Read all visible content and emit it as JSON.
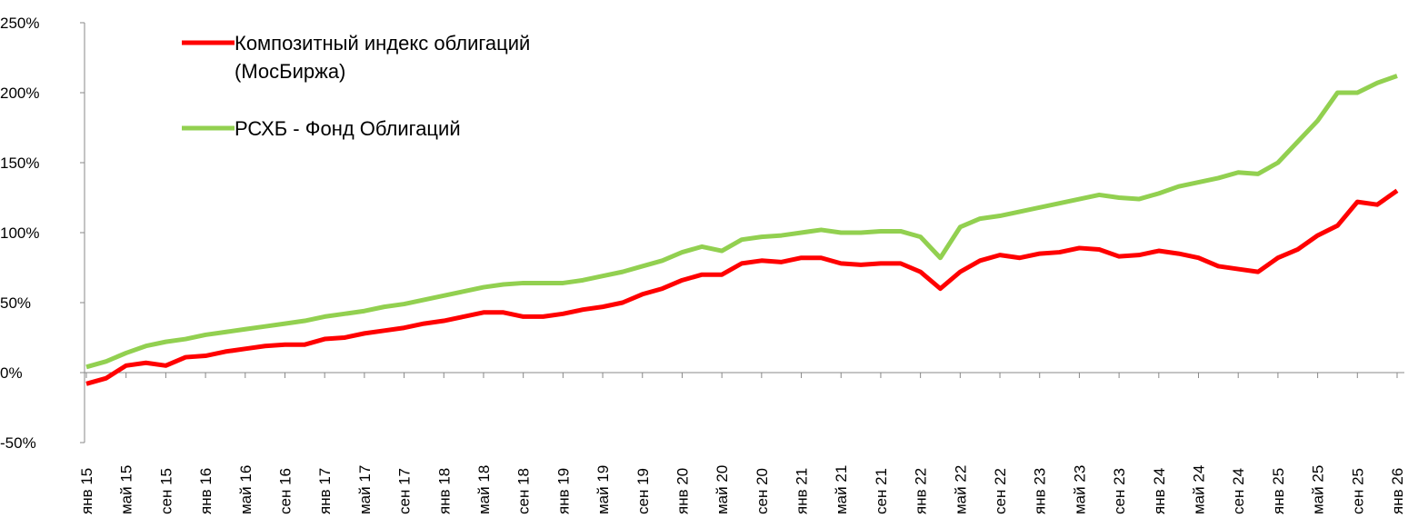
{
  "chart_data": {
    "type": "line",
    "categories": [
      "янв 15",
      null,
      "май 15",
      null,
      "сен 15",
      null,
      "янв 16",
      null,
      "май 16",
      null,
      "сен 16",
      null,
      "янв 17",
      null,
      "май 17",
      null,
      "сен 17",
      null,
      "янв 18",
      null,
      "май 18",
      null,
      "сен 18",
      null,
      "янв 19",
      null,
      "май 19",
      null,
      "сен 19",
      null,
      "янв 20",
      null,
      "май 20",
      null,
      "сен 20",
      null,
      "янв 21",
      null,
      "май 21",
      null,
      "сен 21",
      null,
      "янв 22",
      null,
      "май 22",
      null,
      "сен 22",
      null,
      "янв 23",
      null,
      "май 23",
      null,
      "сен 23",
      null,
      "янв 24",
      null,
      "май 24",
      null,
      "сен 24",
      null,
      "янв 25",
      null,
      "май 25",
      null,
      "сен 25",
      null,
      "янв 26"
    ],
    "series": [
      {
        "name": "Композитный индекс облигаций (МосБиржа)",
        "color": "#ff0000",
        "values": [
          -8,
          -4,
          5,
          7,
          5,
          11,
          12,
          15,
          17,
          19,
          20,
          20,
          24,
          25,
          28,
          30,
          32,
          35,
          37,
          40,
          43,
          43,
          40,
          40,
          42,
          45,
          47,
          50,
          56,
          60,
          66,
          70,
          70,
          78,
          80,
          79,
          82,
          82,
          78,
          77,
          78,
          78,
          72,
          60,
          72,
          80,
          84,
          82,
          85,
          86,
          89,
          88,
          83,
          84,
          87,
          85,
          82,
          76,
          74,
          72,
          82,
          88,
          98,
          105,
          122,
          120,
          130
        ]
      },
      {
        "name": "РСХБ - Фонд Облигаций",
        "color": "#92d050",
        "values": [
          4,
          8,
          14,
          19,
          22,
          24,
          27,
          29,
          31,
          33,
          35,
          37,
          40,
          42,
          44,
          47,
          49,
          52,
          55,
          58,
          61,
          63,
          64,
          64,
          64,
          66,
          69,
          72,
          76,
          80,
          86,
          90,
          87,
          95,
          97,
          98,
          100,
          102,
          100,
          100,
          101,
          101,
          97,
          82,
          104,
          110,
          112,
          115,
          118,
          121,
          124,
          127,
          125,
          124,
          128,
          133,
          136,
          139,
          143,
          142,
          150,
          165,
          180,
          200,
          200,
          207,
          212
        ]
      }
    ],
    "ylim": [
      -50,
      250
    ],
    "yticks": [
      {
        "value": -50,
        "label": "-50%"
      },
      {
        "value": 0,
        "label": "0%"
      },
      {
        "value": 50,
        "label": "50%"
      },
      {
        "value": 100,
        "label": "100%"
      },
      {
        "value": 150,
        "label": "150%"
      },
      {
        "value": 200,
        "label": "200%"
      },
      {
        "value": 250,
        "label": "250%"
      }
    ],
    "grid": false,
    "legend": "upper left"
  }
}
